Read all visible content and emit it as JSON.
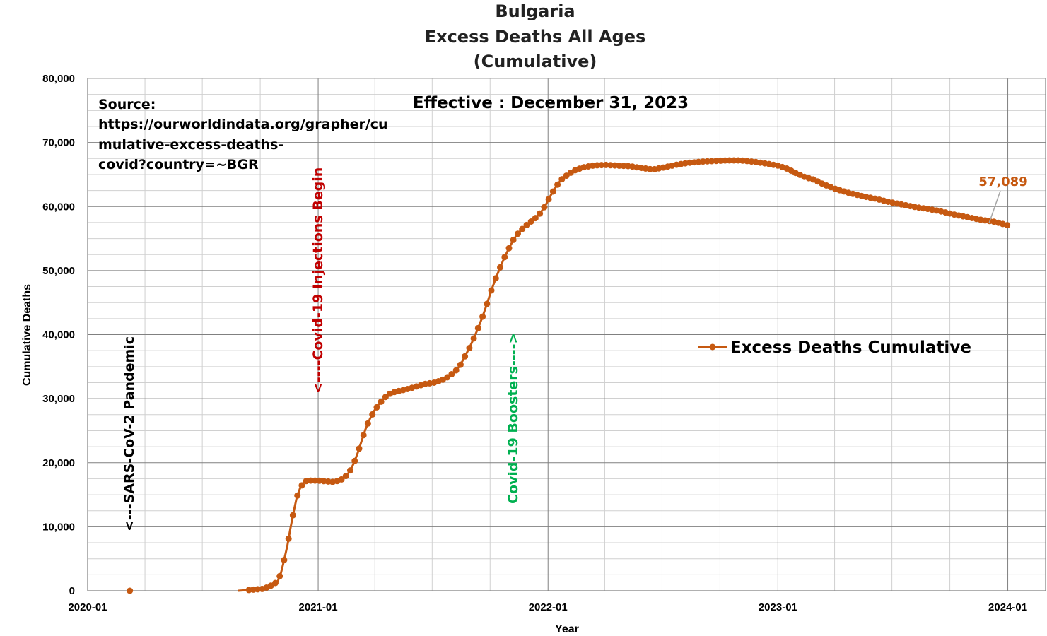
{
  "chart_data": {
    "type": "line",
    "title": [
      "Bulgaria",
      "Excess Deaths All Ages",
      "(Cumulative)"
    ],
    "xlabel": "Year",
    "ylabel": "Cumulative Deaths",
    "x_range": [
      "2020-01-01",
      "2024-03-01"
    ],
    "ylim": [
      0,
      80000
    ],
    "x_ticks": [
      {
        "date": "2020-01-01",
        "label": "2020-01"
      },
      {
        "date": "2021-01-01",
        "label": "2021-01"
      },
      {
        "date": "2022-01-01",
        "label": "2022-01"
      },
      {
        "date": "2023-01-01",
        "label": "2023-01"
      },
      {
        "date": "2024-01-01",
        "label": "2024-01"
      }
    ],
    "y_ticks": [
      {
        "value": 0,
        "label": "0"
      },
      {
        "value": 10000,
        "label": "10,000"
      },
      {
        "value": 20000,
        "label": "20,000"
      },
      {
        "value": 30000,
        "label": "30,000"
      },
      {
        "value": 40000,
        "label": "40,000"
      },
      {
        "value": 50000,
        "label": "50,000"
      },
      {
        "value": 60000,
        "label": "60,000"
      },
      {
        "value": 70000,
        "label": "70,000"
      },
      {
        "value": 80000,
        "label": "80,000"
      }
    ],
    "grid": true,
    "legend_position": "right-middle",
    "series": [
      {
        "name": "Excess Deaths Cumulative",
        "color": "#C65911",
        "marker": "circle",
        "points": [
          [
            "2020-03-08",
            0
          ],
          [
            "2020-08-27",
            0
          ],
          [
            "2020-09-10",
            100
          ],
          [
            "2020-09-24",
            200
          ],
          [
            "2020-10-05",
            300
          ],
          [
            "2020-10-14",
            600
          ],
          [
            "2020-10-22",
            1000
          ],
          [
            "2020-10-29",
            1500
          ],
          [
            "2020-11-03",
            2800
          ],
          [
            "2020-11-08",
            4800
          ],
          [
            "2020-11-13",
            7000
          ],
          [
            "2020-11-18",
            9800
          ],
          [
            "2020-11-23",
            12300
          ],
          [
            "2020-11-28",
            14600
          ],
          [
            "2020-12-04",
            16200
          ],
          [
            "2020-12-11",
            17100
          ],
          [
            "2020-12-20",
            17200
          ],
          [
            "2021-01-01",
            17200
          ],
          [
            "2021-01-12",
            17100
          ],
          [
            "2021-01-24",
            17000
          ],
          [
            "2021-02-04",
            17200
          ],
          [
            "2021-02-12",
            17700
          ],
          [
            "2021-02-20",
            18600
          ],
          [
            "2021-02-27",
            20000
          ],
          [
            "2021-03-05",
            21600
          ],
          [
            "2021-03-11",
            23400
          ],
          [
            "2021-03-17",
            25200
          ],
          [
            "2021-03-24",
            26800
          ],
          [
            "2021-03-31",
            28100
          ],
          [
            "2021-04-08",
            29200
          ],
          [
            "2021-04-17",
            30200
          ],
          [
            "2021-04-27",
            30900
          ],
          [
            "2021-05-09",
            31200
          ],
          [
            "2021-05-23",
            31500
          ],
          [
            "2021-06-06",
            31900
          ],
          [
            "2021-06-20",
            32300
          ],
          [
            "2021-07-04",
            32500
          ],
          [
            "2021-07-17",
            32900
          ],
          [
            "2021-07-28",
            33500
          ],
          [
            "2021-08-07",
            34300
          ],
          [
            "2021-08-15",
            35300
          ],
          [
            "2021-08-22",
            36600
          ],
          [
            "2021-08-29",
            37900
          ],
          [
            "2021-09-05",
            39400
          ],
          [
            "2021-09-12",
            41000
          ],
          [
            "2021-09-19",
            42800
          ],
          [
            "2021-09-26",
            44800
          ],
          [
            "2021-10-03",
            46900
          ],
          [
            "2021-10-10",
            48800
          ],
          [
            "2021-10-17",
            50500
          ],
          [
            "2021-10-24",
            52100
          ],
          [
            "2021-10-31",
            53500
          ],
          [
            "2021-11-07",
            54800
          ],
          [
            "2021-11-15",
            55900
          ],
          [
            "2021-11-24",
            56800
          ],
          [
            "2021-12-03",
            57500
          ],
          [
            "2021-12-12",
            58200
          ],
          [
            "2021-12-20",
            59000
          ],
          [
            "2021-12-28",
            60200
          ],
          [
            "2022-01-05",
            61700
          ],
          [
            "2022-01-13",
            63000
          ],
          [
            "2022-01-21",
            64100
          ],
          [
            "2022-01-31",
            64900
          ],
          [
            "2022-02-11",
            65600
          ],
          [
            "2022-02-25",
            66100
          ],
          [
            "2022-03-14",
            66400
          ],
          [
            "2022-04-01",
            66500
          ],
          [
            "2022-04-21",
            66400
          ],
          [
            "2022-05-11",
            66300
          ],
          [
            "2022-05-31",
            66000
          ],
          [
            "2022-06-17",
            65800
          ],
          [
            "2022-07-04",
            66100
          ],
          [
            "2022-07-22",
            66500
          ],
          [
            "2022-08-10",
            66800
          ],
          [
            "2022-08-31",
            67000
          ],
          [
            "2022-09-21",
            67100
          ],
          [
            "2022-10-12",
            67200
          ],
          [
            "2022-11-02",
            67200
          ],
          [
            "2022-11-23",
            67000
          ],
          [
            "2022-12-14",
            66700
          ],
          [
            "2023-01-01",
            66400
          ],
          [
            "2023-01-16",
            65900
          ],
          [
            "2023-01-30",
            65200
          ],
          [
            "2023-02-13",
            64600
          ],
          [
            "2023-02-27",
            64200
          ],
          [
            "2023-03-16",
            63400
          ],
          [
            "2023-04-04",
            62700
          ],
          [
            "2023-04-25",
            62100
          ],
          [
            "2023-05-16",
            61600
          ],
          [
            "2023-06-06",
            61200
          ],
          [
            "2023-06-27",
            60700
          ],
          [
            "2023-07-18",
            60300
          ],
          [
            "2023-08-08",
            59900
          ],
          [
            "2023-08-29",
            59600
          ],
          [
            "2023-09-19",
            59200
          ],
          [
            "2023-10-10",
            58700
          ],
          [
            "2023-10-31",
            58300
          ],
          [
            "2023-11-21",
            57900
          ],
          [
            "2023-12-12",
            57600
          ],
          [
            "2023-12-31",
            57089
          ]
        ]
      }
    ],
    "last_value_label": "57,089",
    "annotations": {
      "source": [
        "Source:",
        "https://ourworldindata.org/grapher/cu",
        "mulative-excess-deaths-",
        "covid?country=~BGR"
      ],
      "effective": "Effective : December 31, 2023",
      "pandemic": {
        "text": "<---SARS-CoV-2 Pandemic",
        "color": "#000000"
      },
      "injections": {
        "text": "<----Covid-19 Injections Begin",
        "color": "#C00000"
      },
      "boosters": {
        "text": "Covid-19 Boosters---->",
        "color": "#00B050"
      }
    },
    "colors": {
      "series": "#C65911",
      "major_grid": "#808080",
      "minor_grid": "#D0D0D0",
      "last_label": "#C65911",
      "leader_line": "#A6A6A6"
    }
  }
}
